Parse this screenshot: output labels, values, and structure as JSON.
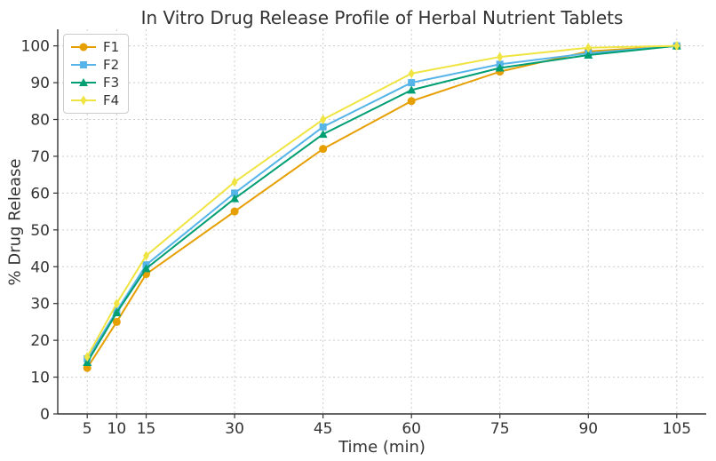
{
  "chart_data": {
    "type": "line",
    "title": "In Vitro Drug Release Profile of Herbal Nutrient Tablets",
    "xlabel": "Time (min)",
    "ylabel": "% Drug Release",
    "x": [
      5,
      10,
      15,
      30,
      45,
      60,
      75,
      90,
      105
    ],
    "series": [
      {
        "name": "F1",
        "color": "#E69F00",
        "marker": "circle",
        "values": [
          12.5,
          25,
          38,
          55,
          72,
          85,
          93,
          98.5,
          100
        ]
      },
      {
        "name": "F2",
        "color": "#56B4E9",
        "marker": "square",
        "values": [
          15,
          28,
          40.5,
          60,
          78,
          90,
          95,
          98,
          100
        ]
      },
      {
        "name": "F3",
        "color": "#009E73",
        "marker": "triangle",
        "values": [
          14,
          27.5,
          39.5,
          58.5,
          76,
          88,
          94,
          97.5,
          100
        ]
      },
      {
        "name": "F4",
        "color": "#F0E442",
        "marker": "diamond",
        "values": [
          15.5,
          30,
          43,
          63,
          80,
          92.5,
          97,
          99.5,
          100
        ]
      }
    ],
    "xticks": [
      5,
      10,
      15,
      30,
      45,
      60,
      75,
      90,
      105
    ],
    "yticks": [
      0,
      10,
      20,
      30,
      40,
      50,
      60,
      70,
      80,
      90,
      100
    ],
    "xlim": [
      0,
      110
    ],
    "ylim": [
      0,
      104.5
    ],
    "grid": true,
    "grid_style": "dashed",
    "legend_position": "upper left",
    "colors": {
      "axis": "#333333",
      "text": "#333333",
      "grid": "#cccccc",
      "background": "#ffffff"
    }
  }
}
